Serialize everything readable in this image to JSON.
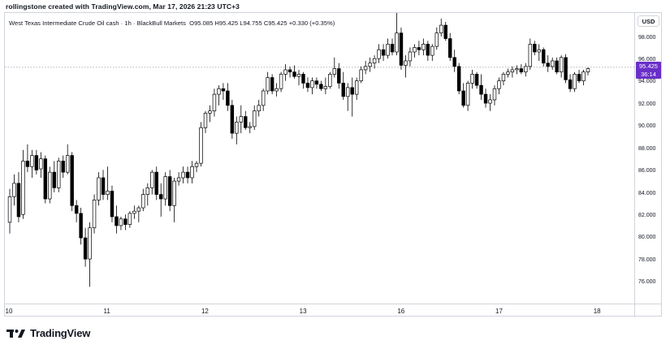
{
  "header": {
    "text": "rollingstone created with TradingView.com, Mar 17, 2026 21:23 UTC+3"
  },
  "legend": {
    "symbol": "West Texas Intermediate Crude Oil cash · 1h · BlackBull Markets",
    "open": "O95.085",
    "high": "H95.425",
    "low": "L94.755",
    "close": "C95.425",
    "change": "+0.330 (+0.35%)"
  },
  "price_axis": {
    "currency": "USD",
    "last_price": "95.425",
    "countdown": "36:14",
    "tag_color": "#6a2fc9"
  },
  "brand": {
    "name": "TradingView"
  },
  "colors": {
    "up_fill": "#ffffff",
    "down_fill": "#000000",
    "wick": "#000000"
  },
  "chart_data": {
    "type": "candlestick",
    "yticks": [
      "76.000",
      "78.000",
      "80.000",
      "82.000",
      "84.000",
      "86.000",
      "88.000",
      "90.000",
      "92.000",
      "94.000",
      "96.000",
      "98.000"
    ],
    "ylim": [
      74.2,
      100.3
    ],
    "xticks": [
      "10",
      "11",
      "12",
      "13",
      "16",
      "17",
      "18"
    ],
    "last_price": 95.425,
    "candles": [
      {
        "o": 81.5,
        "h": 84.5,
        "l": 80.5,
        "c": 83.8
      },
      {
        "o": 83.8,
        "h": 85.8,
        "l": 83.0,
        "c": 85.0
      },
      {
        "o": 85.0,
        "h": 86.0,
        "l": 81.5,
        "c": 82.0
      },
      {
        "o": 82.2,
        "h": 88.0,
        "l": 81.8,
        "c": 87.0
      },
      {
        "o": 87.0,
        "h": 88.5,
        "l": 86.0,
        "c": 86.5
      },
      {
        "o": 86.5,
        "h": 88.0,
        "l": 85.5,
        "c": 87.5
      },
      {
        "o": 87.5,
        "h": 88.0,
        "l": 85.8,
        "c": 86.2
      },
      {
        "o": 86.3,
        "h": 87.8,
        "l": 85.5,
        "c": 87.2
      },
      {
        "o": 87.2,
        "h": 87.5,
        "l": 83.2,
        "c": 83.6
      },
      {
        "o": 83.6,
        "h": 86.5,
        "l": 83.2,
        "c": 86.0
      },
      {
        "o": 86.0,
        "h": 87.0,
        "l": 84.2,
        "c": 84.6
      },
      {
        "o": 84.6,
        "h": 87.3,
        "l": 84.2,
        "c": 87.0
      },
      {
        "o": 87.0,
        "h": 87.5,
        "l": 85.5,
        "c": 86.0
      },
      {
        "o": 86.0,
        "h": 88.5,
        "l": 85.8,
        "c": 87.5
      },
      {
        "o": 87.5,
        "h": 87.8,
        "l": 82.5,
        "c": 83.0
      },
      {
        "o": 83.0,
        "h": 83.5,
        "l": 81.5,
        "c": 82.3
      },
      {
        "o": 82.3,
        "h": 82.8,
        "l": 79.5,
        "c": 80.1
      },
      {
        "o": 80.1,
        "h": 81.0,
        "l": 77.5,
        "c": 78.2
      },
      {
        "o": 78.2,
        "h": 81.5,
        "l": 75.7,
        "c": 81.0
      },
      {
        "o": 81.0,
        "h": 84.0,
        "l": 80.5,
        "c": 83.5
      },
      {
        "o": 83.5,
        "h": 86.0,
        "l": 83.0,
        "c": 85.5
      },
      {
        "o": 85.5,
        "h": 86.2,
        "l": 83.5,
        "c": 84.0
      },
      {
        "o": 84.0,
        "h": 86.5,
        "l": 83.5,
        "c": 84.3
      },
      {
        "o": 84.3,
        "h": 84.8,
        "l": 81.5,
        "c": 82.0
      },
      {
        "o": 82.0,
        "h": 83.0,
        "l": 80.5,
        "c": 81.2
      },
      {
        "o": 81.2,
        "h": 82.0,
        "l": 80.8,
        "c": 81.8
      },
      {
        "o": 81.8,
        "h": 82.2,
        "l": 80.8,
        "c": 81.3
      },
      {
        "o": 81.3,
        "h": 82.5,
        "l": 81.0,
        "c": 82.3
      },
      {
        "o": 82.3,
        "h": 83.0,
        "l": 81.8,
        "c": 82.5
      },
      {
        "o": 82.5,
        "h": 83.0,
        "l": 81.5,
        "c": 82.8
      },
      {
        "o": 82.8,
        "h": 84.5,
        "l": 82.5,
        "c": 84.0
      },
      {
        "o": 84.0,
        "h": 85.0,
        "l": 83.0,
        "c": 84.6
      },
      {
        "o": 84.6,
        "h": 86.2,
        "l": 84.0,
        "c": 86.0
      },
      {
        "o": 86.0,
        "h": 86.5,
        "l": 83.5,
        "c": 84.0
      },
      {
        "o": 84.0,
        "h": 85.0,
        "l": 82.0,
        "c": 83.6
      },
      {
        "o": 83.6,
        "h": 86.0,
        "l": 83.0,
        "c": 85.6
      },
      {
        "o": 85.6,
        "h": 86.2,
        "l": 82.5,
        "c": 83.0
      },
      {
        "o": 83.0,
        "h": 85.5,
        "l": 81.5,
        "c": 85.2
      },
      {
        "o": 85.2,
        "h": 86.0,
        "l": 84.8,
        "c": 85.5
      },
      {
        "o": 85.5,
        "h": 86.5,
        "l": 85.0,
        "c": 86.0
      },
      {
        "o": 86.0,
        "h": 86.5,
        "l": 85.0,
        "c": 85.5
      },
      {
        "o": 85.5,
        "h": 87.0,
        "l": 85.0,
        "c": 86.5
      },
      {
        "o": 86.5,
        "h": 87.0,
        "l": 86.0,
        "c": 86.8
      },
      {
        "o": 86.8,
        "h": 90.5,
        "l": 86.5,
        "c": 90.0
      },
      {
        "o": 90.0,
        "h": 91.5,
        "l": 89.5,
        "c": 91.3
      },
      {
        "o": 91.3,
        "h": 92.0,
        "l": 90.5,
        "c": 91.5
      },
      {
        "o": 91.5,
        "h": 93.5,
        "l": 91.0,
        "c": 93.0
      },
      {
        "o": 93.0,
        "h": 93.8,
        "l": 92.0,
        "c": 93.5
      },
      {
        "o": 93.5,
        "h": 94.0,
        "l": 92.5,
        "c": 93.3
      },
      {
        "o": 93.3,
        "h": 94.0,
        "l": 91.5,
        "c": 92.0
      },
      {
        "o": 92.0,
        "h": 92.5,
        "l": 89.0,
        "c": 89.5
      },
      {
        "o": 89.5,
        "h": 91.0,
        "l": 88.5,
        "c": 90.5
      },
      {
        "o": 90.5,
        "h": 92.0,
        "l": 89.5,
        "c": 91.0
      },
      {
        "o": 91.0,
        "h": 91.5,
        "l": 89.8,
        "c": 90.0
      },
      {
        "o": 90.0,
        "h": 90.5,
        "l": 89.5,
        "c": 90.1
      },
      {
        "o": 90.1,
        "h": 92.0,
        "l": 89.8,
        "c": 91.5
      },
      {
        "o": 91.5,
        "h": 92.5,
        "l": 91.0,
        "c": 92.0
      },
      {
        "o": 92.0,
        "h": 93.5,
        "l": 91.5,
        "c": 93.3
      },
      {
        "o": 93.3,
        "h": 95.0,
        "l": 93.0,
        "c": 94.5
      },
      {
        "o": 94.5,
        "h": 94.8,
        "l": 93.0,
        "c": 93.3
      },
      {
        "o": 93.3,
        "h": 94.0,
        "l": 92.8,
        "c": 93.5
      },
      {
        "o": 93.5,
        "h": 95.0,
        "l": 93.2,
        "c": 94.8
      },
      {
        "o": 94.8,
        "h": 95.7,
        "l": 94.2,
        "c": 95.2
      },
      {
        "o": 95.2,
        "h": 95.5,
        "l": 94.5,
        "c": 95.0
      },
      {
        "o": 95.0,
        "h": 95.6,
        "l": 94.4,
        "c": 94.6
      },
      {
        "o": 94.6,
        "h": 95.2,
        "l": 93.8,
        "c": 94.8
      },
      {
        "o": 94.8,
        "h": 95.0,
        "l": 93.5,
        "c": 94.0
      },
      {
        "o": 94.0,
        "h": 94.5,
        "l": 93.2,
        "c": 93.6
      },
      {
        "o": 93.6,
        "h": 94.5,
        "l": 93.0,
        "c": 94.2
      },
      {
        "o": 94.2,
        "h": 94.5,
        "l": 93.5,
        "c": 93.9
      },
      {
        "o": 93.9,
        "h": 94.2,
        "l": 93.3,
        "c": 93.5
      },
      {
        "o": 93.5,
        "h": 94.5,
        "l": 93.0,
        "c": 93.7
      },
      {
        "o": 93.7,
        "h": 95.0,
        "l": 93.5,
        "c": 94.8
      },
      {
        "o": 94.8,
        "h": 96.3,
        "l": 94.5,
        "c": 95.3
      },
      {
        "o": 95.3,
        "h": 95.8,
        "l": 93.5,
        "c": 94.0
      },
      {
        "o": 94.0,
        "h": 95.0,
        "l": 92.5,
        "c": 92.8
      },
      {
        "o": 92.8,
        "h": 94.0,
        "l": 91.5,
        "c": 93.6
      },
      {
        "o": 93.6,
        "h": 94.5,
        "l": 91.0,
        "c": 93.0
      },
      {
        "o": 93.0,
        "h": 94.5,
        "l": 92.5,
        "c": 94.2
      },
      {
        "o": 94.2,
        "h": 95.5,
        "l": 94.0,
        "c": 95.2
      },
      {
        "o": 95.2,
        "h": 96.0,
        "l": 94.8,
        "c": 95.5
      },
      {
        "o": 95.5,
        "h": 96.3,
        "l": 95.0,
        "c": 95.8
      },
      {
        "o": 95.8,
        "h": 96.5,
        "l": 95.3,
        "c": 96.2
      },
      {
        "o": 96.2,
        "h": 97.5,
        "l": 95.8,
        "c": 97.0
      },
      {
        "o": 97.0,
        "h": 97.5,
        "l": 96.0,
        "c": 96.5
      },
      {
        "o": 96.5,
        "h": 98.0,
        "l": 96.2,
        "c": 97.5
      },
      {
        "o": 97.5,
        "h": 98.0,
        "l": 96.5,
        "c": 96.8
      },
      {
        "o": 96.8,
        "h": 100.5,
        "l": 96.5,
        "c": 98.5
      },
      {
        "o": 98.5,
        "h": 99.0,
        "l": 95.2,
        "c": 95.6
      },
      {
        "o": 95.6,
        "h": 96.5,
        "l": 94.5,
        "c": 96.0
      },
      {
        "o": 96.0,
        "h": 97.2,
        "l": 95.5,
        "c": 96.8
      },
      {
        "o": 96.8,
        "h": 97.5,
        "l": 96.3,
        "c": 97.2
      },
      {
        "o": 97.2,
        "h": 97.8,
        "l": 96.5,
        "c": 97.0
      },
      {
        "o": 97.0,
        "h": 98.0,
        "l": 96.5,
        "c": 97.5
      },
      {
        "o": 97.5,
        "h": 97.8,
        "l": 96.0,
        "c": 96.5
      },
      {
        "o": 96.5,
        "h": 97.5,
        "l": 96.0,
        "c": 97.3
      },
      {
        "o": 97.3,
        "h": 99.0,
        "l": 97.0,
        "c": 98.5
      },
      {
        "o": 98.5,
        "h": 99.8,
        "l": 98.2,
        "c": 99.2
      },
      {
        "o": 99.2,
        "h": 99.5,
        "l": 97.8,
        "c": 98.0
      },
      {
        "o": 98.0,
        "h": 98.5,
        "l": 96.0,
        "c": 96.3
      },
      {
        "o": 96.3,
        "h": 97.0,
        "l": 95.0,
        "c": 95.5
      },
      {
        "o": 95.5,
        "h": 95.8,
        "l": 93.0,
        "c": 93.3
      },
      {
        "o": 93.3,
        "h": 94.0,
        "l": 91.8,
        "c": 92.0
      },
      {
        "o": 92.0,
        "h": 94.2,
        "l": 91.5,
        "c": 94.0
      },
      {
        "o": 94.0,
        "h": 95.2,
        "l": 93.5,
        "c": 94.8
      },
      {
        "o": 94.8,
        "h": 95.0,
        "l": 93.5,
        "c": 93.8
      },
      {
        "o": 93.8,
        "h": 94.8,
        "l": 92.5,
        "c": 93.0
      },
      {
        "o": 93.0,
        "h": 93.5,
        "l": 91.8,
        "c": 92.2
      },
      {
        "o": 92.2,
        "h": 93.0,
        "l": 91.5,
        "c": 92.5
      },
      {
        "o": 92.5,
        "h": 93.8,
        "l": 92.0,
        "c": 93.5
      },
      {
        "o": 93.5,
        "h": 94.5,
        "l": 93.0,
        "c": 94.2
      },
      {
        "o": 94.2,
        "h": 95.0,
        "l": 93.8,
        "c": 94.8
      },
      {
        "o": 94.8,
        "h": 95.3,
        "l": 94.5,
        "c": 95.0
      },
      {
        "o": 95.0,
        "h": 95.5,
        "l": 94.5,
        "c": 95.2
      },
      {
        "o": 95.2,
        "h": 95.6,
        "l": 94.8,
        "c": 95.3
      },
      {
        "o": 95.3,
        "h": 95.7,
        "l": 94.8,
        "c": 95.0
      },
      {
        "o": 95.0,
        "h": 95.8,
        "l": 94.6,
        "c": 95.5
      },
      {
        "o": 95.5,
        "h": 98.0,
        "l": 95.2,
        "c": 97.5
      },
      {
        "o": 97.5,
        "h": 97.8,
        "l": 96.5,
        "c": 96.8
      },
      {
        "o": 96.8,
        "h": 97.5,
        "l": 96.0,
        "c": 97.0
      },
      {
        "o": 97.0,
        "h": 97.2,
        "l": 95.5,
        "c": 95.8
      },
      {
        "o": 95.8,
        "h": 96.5,
        "l": 95.0,
        "c": 95.5
      },
      {
        "o": 95.5,
        "h": 96.3,
        "l": 95.2,
        "c": 96.0
      },
      {
        "o": 96.0,
        "h": 96.3,
        "l": 94.8,
        "c": 95.0
      },
      {
        "o": 95.0,
        "h": 96.5,
        "l": 94.5,
        "c": 96.3
      },
      {
        "o": 96.3,
        "h": 96.6,
        "l": 94.0,
        "c": 94.3
      },
      {
        "o": 94.3,
        "h": 94.8,
        "l": 93.2,
        "c": 93.5
      },
      {
        "o": 93.5,
        "h": 95.0,
        "l": 93.2,
        "c": 94.8
      },
      {
        "o": 94.8,
        "h": 95.2,
        "l": 94.0,
        "c": 94.2
      },
      {
        "o": 94.2,
        "h": 95.2,
        "l": 93.8,
        "c": 95.0
      },
      {
        "o": 95.0,
        "h": 95.4,
        "l": 94.7,
        "c": 95.3
      }
    ]
  }
}
